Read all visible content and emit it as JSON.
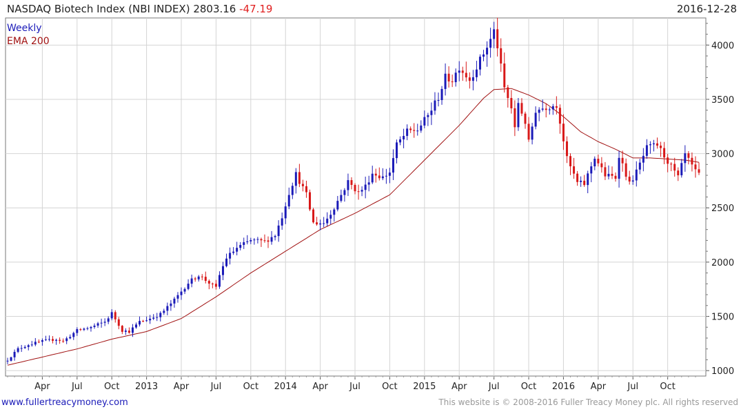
{
  "header": {
    "title": "NASDAQ Biotech Index (NBI INDEX) 2803.16",
    "change": "-47.19",
    "date": "2016-12-28"
  },
  "legend": {
    "weekly": "Weekly",
    "ema": "EMA 200"
  },
  "footer": {
    "website": "www.fullertreacymoney.com",
    "copyright": "This website is © 2008-2016 Fuller Treacy Money plc. All rights reserved"
  },
  "colors": {
    "up": "#1a1ab8",
    "down": "#d81818",
    "ema": "#a01010",
    "grid": "#d4d4d4",
    "change": "#e02020",
    "link": "#1a1ab8"
  },
  "chart_data": {
    "type": "candlestick",
    "title": "NASDAQ Biotech Index (NBI INDEX)",
    "frequency": "Weekly",
    "ylim": [
      950,
      4250
    ],
    "y_ticks": [
      1000,
      1500,
      2000,
      2500,
      3000,
      3500,
      4000
    ],
    "x_labels": [
      {
        "label": "Apr",
        "week": 10
      },
      {
        "label": "Jul",
        "week": 20
      },
      {
        "label": "Oct",
        "week": 30
      },
      {
        "label": "2013",
        "week": 40
      },
      {
        "label": "Apr",
        "week": 50
      },
      {
        "label": "Jul",
        "week": 60
      },
      {
        "label": "Oct",
        "week": 70
      },
      {
        "label": "2014",
        "week": 80
      },
      {
        "label": "Apr",
        "week": 90
      },
      {
        "label": "Jul",
        "week": 100
      },
      {
        "label": "Oct",
        "week": 110
      },
      {
        "label": "2015",
        "week": 120
      },
      {
        "label": "Apr",
        "week": 130
      },
      {
        "label": "Jul",
        "week": 140
      },
      {
        "label": "Oct",
        "week": 150
      },
      {
        "label": "2016",
        "week": 160
      },
      {
        "label": "Apr",
        "week": 170
      },
      {
        "label": "Jul",
        "week": 180
      },
      {
        "label": "Oct",
        "week": 190
      }
    ],
    "price_anchors": [
      [
        0,
        1100
      ],
      [
        3,
        1200
      ],
      [
        6,
        1240
      ],
      [
        10,
        1270
      ],
      [
        14,
        1290
      ],
      [
        16,
        1270
      ],
      [
        20,
        1370
      ],
      [
        24,
        1400
      ],
      [
        28,
        1450
      ],
      [
        30,
        1530
      ],
      [
        33,
        1370
      ],
      [
        35,
        1360
      ],
      [
        38,
        1450
      ],
      [
        41,
        1480
      ],
      [
        44,
        1520
      ],
      [
        48,
        1650
      ],
      [
        52,
        1810
      ],
      [
        55,
        1880
      ],
      [
        58,
        1810
      ],
      [
        60,
        1760
      ],
      [
        61,
        1880
      ],
      [
        63,
        2040
      ],
      [
        66,
        2130
      ],
      [
        70,
        2200
      ],
      [
        74,
        2190
      ],
      [
        77,
        2250
      ],
      [
        79,
        2420
      ],
      [
        81,
        2640
      ],
      [
        83,
        2810
      ],
      [
        86,
        2620
      ],
      [
        88,
        2360
      ],
      [
        91,
        2360
      ],
      [
        93,
        2450
      ],
      [
        96,
        2620
      ],
      [
        98,
        2740
      ],
      [
        101,
        2640
      ],
      [
        103,
        2700
      ],
      [
        105,
        2820
      ],
      [
        108,
        2780
      ],
      [
        110,
        2830
      ],
      [
        112,
        3080
      ],
      [
        115,
        3200
      ],
      [
        118,
        3220
      ],
      [
        121,
        3350
      ],
      [
        124,
        3520
      ],
      [
        126,
        3700
      ],
      [
        128,
        3680
      ],
      [
        130,
        3800
      ],
      [
        133,
        3680
      ],
      [
        136,
        3860
      ],
      [
        139,
        4050
      ],
      [
        140,
        4130
      ],
      [
        141,
        3990
      ],
      [
        143,
        3600
      ],
      [
        145,
        3420
      ],
      [
        146,
        3220
      ],
      [
        147,
        3470
      ],
      [
        149,
        3290
      ],
      [
        150,
        3100
      ],
      [
        152,
        3400
      ],
      [
        155,
        3430
      ],
      [
        158,
        3450
      ],
      [
        159,
        3300
      ],
      [
        161,
        2950
      ],
      [
        164,
        2730
      ],
      [
        166,
        2720
      ],
      [
        169,
        2970
      ],
      [
        172,
        2800
      ],
      [
        175,
        2780
      ],
      [
        176,
        2990
      ],
      [
        179,
        2720
      ],
      [
        181,
        2830
      ],
      [
        184,
        3050
      ],
      [
        187,
        3080
      ],
      [
        189,
        2980
      ],
      [
        191,
        2880
      ],
      [
        193,
        2780
      ],
      [
        195,
        2990
      ],
      [
        198,
        2830
      ],
      [
        199,
        2803
      ]
    ],
    "ema200_anchors": [
      [
        0,
        1050
      ],
      [
        20,
        1200
      ],
      [
        30,
        1290
      ],
      [
        40,
        1360
      ],
      [
        50,
        1480
      ],
      [
        60,
        1680
      ],
      [
        70,
        1900
      ],
      [
        80,
        2100
      ],
      [
        90,
        2300
      ],
      [
        100,
        2450
      ],
      [
        110,
        2620
      ],
      [
        120,
        2940
      ],
      [
        130,
        3260
      ],
      [
        137,
        3510
      ],
      [
        140,
        3590
      ],
      [
        145,
        3600
      ],
      [
        150,
        3540
      ],
      [
        155,
        3460
      ],
      [
        158,
        3390
      ],
      [
        160,
        3340
      ],
      [
        165,
        3200
      ],
      [
        170,
        3110
      ],
      [
        175,
        3040
      ],
      [
        180,
        2960
      ],
      [
        185,
        2960
      ],
      [
        190,
        2950
      ],
      [
        195,
        2940
      ],
      [
        199,
        2920
      ]
    ],
    "last_close": 2803.16,
    "change": -47.19
  }
}
